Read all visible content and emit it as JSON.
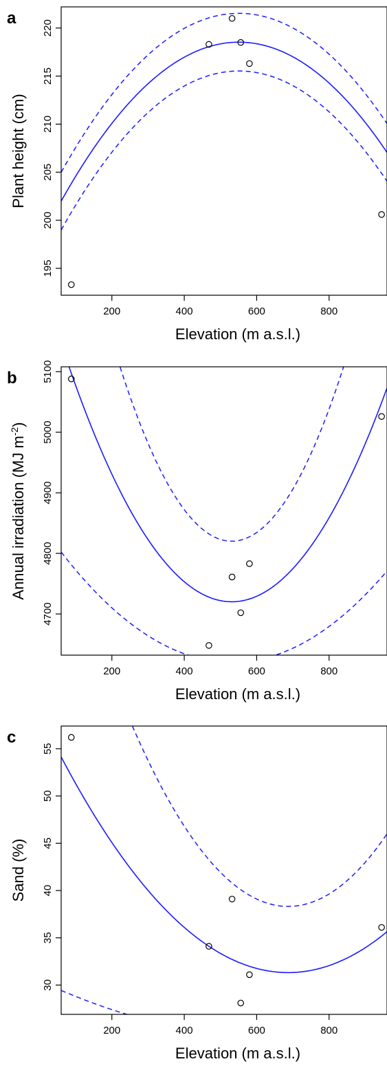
{
  "chart_data": [
    {
      "type": "scatter",
      "panel_label": "a",
      "xlabel": "Elevation (m a.s.l.)",
      "ylabel": "Plant height (cm)",
      "ylabel_suffix": "",
      "xlim": [
        60,
        960
      ],
      "ylim": [
        192.2,
        222.2
      ],
      "x_ticks": [
        200,
        400,
        600,
        800
      ],
      "y_ticks": [
        195,
        200,
        205,
        210,
        215,
        220
      ],
      "points": [
        {
          "x": 88,
          "y": 193.3
        },
        {
          "x": 468,
          "y": 218.3
        },
        {
          "x": 532,
          "y": 221.0
        },
        {
          "x": 556,
          "y": 218.5
        },
        {
          "x": 580,
          "y": 216.3
        },
        {
          "x": 945,
          "y": 200.6
        }
      ],
      "fit": {
        "a": -6.86e-05,
        "b": 0.0756,
        "c": 197.7
      },
      "band": {
        "upper_offset": 3.0,
        "lower_offset": 3.0,
        "edge_spread": 0.0
      }
    },
    {
      "type": "scatter",
      "panel_label": "b",
      "xlabel": "Elevation (m a.s.l.)",
      "ylabel": "Annual irradiation (MJ m",
      "ylabel_suffix": ")",
      "ylabel_superscript": "-2",
      "xlim": [
        60,
        960
      ],
      "ylim": [
        4632,
        5108
      ],
      "x_ticks": [
        200,
        400,
        600,
        800
      ],
      "y_ticks": [
        4700,
        4800,
        4900,
        5000,
        5100
      ],
      "points": [
        {
          "x": 88,
          "y": 5088
        },
        {
          "x": 468,
          "y": 4648
        },
        {
          "x": 532,
          "y": 4761
        },
        {
          "x": 556,
          "y": 4702
        },
        {
          "x": 580,
          "y": 4783
        },
        {
          "x": 945,
          "y": 5026
        }
      ],
      "fit": {
        "a": 0.00192,
        "b": -2.04,
        "c": 5262
      },
      "band": {
        "upper_offset": 100,
        "lower_offset": 100,
        "edge_spread": 0.0011
      }
    },
    {
      "type": "scatter",
      "panel_label": "c",
      "xlabel": "Elevation (m a.s.l.)",
      "ylabel": "Sand (%)",
      "ylabel_suffix": "",
      "xlim": [
        60,
        960
      ],
      "ylim": [
        26.9,
        57.4
      ],
      "x_ticks": [
        200,
        400,
        600,
        800
      ],
      "y_ticks": [
        30,
        35,
        40,
        45,
        50,
        55
      ],
      "points": [
        {
          "x": 88,
          "y": 56.2
        },
        {
          "x": 468,
          "y": 34.1
        },
        {
          "x": 532,
          "y": 39.1
        },
        {
          "x": 556,
          "y": 28.1
        },
        {
          "x": 580,
          "y": 31.1
        },
        {
          "x": 945,
          "y": 36.1
        }
      ],
      "fit": {
        "a": 5.8e-05,
        "b": -0.0797,
        "c": 58.7
      },
      "band": {
        "upper_offset": 7.0,
        "lower_offset": 7.0,
        "edge_spread": 4.5e-05
      }
    }
  ],
  "colors": {
    "fit_line": "#1a1aff",
    "points": "#000000",
    "axes": "#000000"
  }
}
